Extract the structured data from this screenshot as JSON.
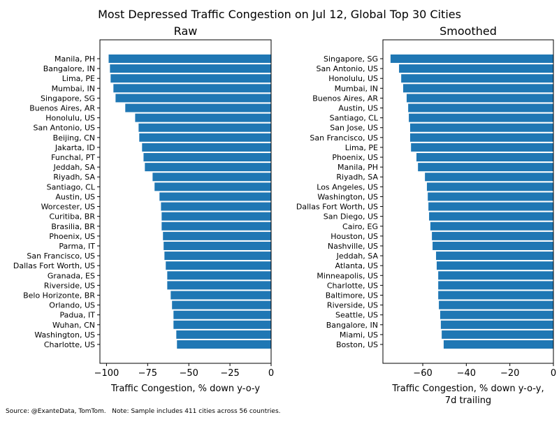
{
  "title": "Most Depressed Traffic Congestion on Jul 12, Global Top 30 Cities",
  "source": "Source: @ExanteData, TomTom.   Note: Sample includes 411 cities across 56 countries.",
  "bar_color": "#1f77b4",
  "chart_data": [
    {
      "type": "bar",
      "orientation": "horizontal",
      "title": "Raw",
      "xlabel": "Traffic Congestion, % down y-o-y",
      "xlabel2": "",
      "xlim": [
        -104,
        0
      ],
      "xticks": [
        -100,
        -75,
        -50,
        -25,
        0
      ],
      "xtick_labels": [
        "−100",
        "−75",
        "−50",
        "−25",
        "0"
      ],
      "categories": [
        "Manila, PH",
        "Bangalore, IN",
        "Lima, PE",
        "Mumbai, IN",
        "Singapore, SG",
        "Buenos Aires, AR",
        "Honolulu, US",
        "San Antonio, US",
        "Beijing, CN",
        "Jakarta, ID",
        "Funchal, PT",
        "Jeddah, SA",
        "Riyadh, SA",
        "Santiago, CL",
        "Austin, US",
        "Worcester, US",
        "Curitiba, BR",
        "Brasilia, BR",
        "Phoenix, US",
        "Parma, IT",
        "San Francisco, US",
        "Dallas Fort Worth, US",
        "Granada, ES",
        "Riverside, US",
        "Belo Horizonte, BR",
        "Orlando, US",
        "Padua, IT",
        "Wuhan, CN",
        "Washington, US",
        "Charlotte, US"
      ],
      "values": [
        -98.7,
        -97.9,
        -97.5,
        -95.8,
        -94.5,
        -88.6,
        -82.6,
        -80.5,
        -80.1,
        -78.4,
        -77.5,
        -76.7,
        -72.0,
        -70.8,
        -67.8,
        -66.9,
        -66.5,
        -66.5,
        -65.7,
        -65.3,
        -64.8,
        -64.0,
        -63.1,
        -63.1,
        -61.0,
        -60.2,
        -59.3,
        -59.3,
        -57.6,
        -57.2
      ]
    },
    {
      "type": "bar",
      "orientation": "horizontal",
      "title": "Smoothed",
      "xlabel": "Traffic Congestion, % down y-o-y,",
      "xlabel2": "7d trailing",
      "xlim": [
        -78.3,
        0
      ],
      "xticks": [
        -60,
        -40,
        -20,
        0
      ],
      "xtick_labels": [
        "−60",
        "−40",
        "−20",
        "0"
      ],
      "categories": [
        "Singapore, SG",
        "San Antonio, US",
        "Honolulu, US",
        "Mumbai, IN",
        "Buenos Aires, AR",
        "Austin, US",
        "Santiago, CL",
        "San Jose, US",
        "San Francisco, US",
        "Lima, PE",
        "Phoenix, US",
        "Manila, PH",
        "Riyadh, SA",
        "Los Angeles, US",
        "Washington, US",
        "Dallas Fort Worth, US",
        "San Diego, US",
        "Cairo, EG",
        "Houston, US",
        "Nashville, US",
        "Jeddah, SA",
        "Atlanta, US",
        "Minneapolis, US",
        "Charlotte, US",
        "Baltimore, US",
        "Riverside, US",
        "Seattle, US",
        "Bangalore, IN",
        "Miami, US",
        "Boston, US"
      ],
      "values": [
        -74.8,
        -70.9,
        -69.9,
        -69.0,
        -67.4,
        -66.7,
        -66.4,
        -65.8,
        -65.8,
        -65.4,
        -62.9,
        -62.2,
        -59.0,
        -58.1,
        -57.7,
        -57.4,
        -57.1,
        -56.5,
        -55.8,
        -55.5,
        -53.9,
        -53.6,
        -52.9,
        -52.9,
        -52.9,
        -52.6,
        -52.0,
        -51.7,
        -51.3,
        -50.4
      ]
    }
  ]
}
